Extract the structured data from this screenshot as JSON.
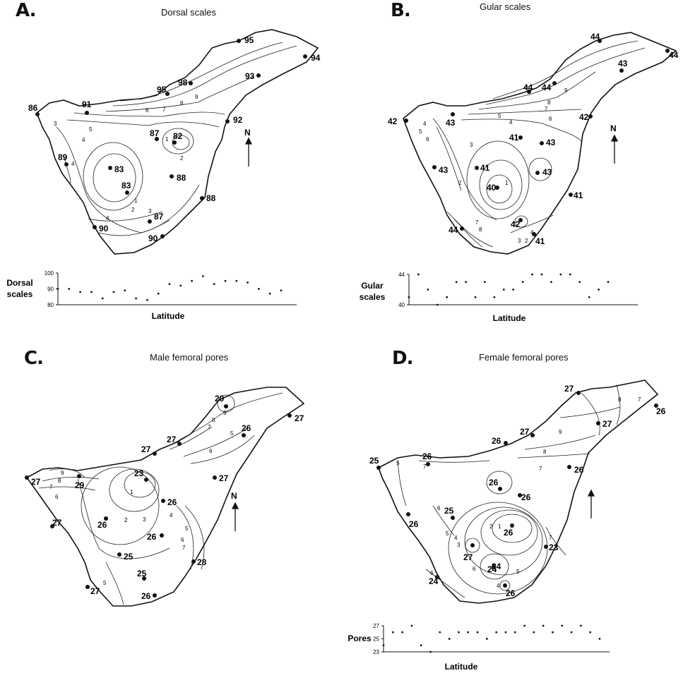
{
  "panels": {
    "a": {
      "letter": "A.",
      "title": "Dorsal scales",
      "sites": [
        "95",
        "94",
        "93",
        "98",
        "95",
        "91",
        "86",
        "92",
        "87",
        "82",
        "89",
        "83",
        "88",
        "83",
        "88",
        "87",
        "90",
        "90"
      ],
      "contours": [
        "9",
        "8",
        "7",
        "6",
        "5",
        "4",
        "3",
        "1",
        "2",
        "4",
        "1",
        "2",
        "3",
        "4"
      ],
      "north": "N",
      "plot_ylabel": [
        "Dorsal",
        "scales"
      ],
      "plot_xlabel": "Latitude",
      "ticks": [
        "100",
        "90",
        "80"
      ]
    },
    "b": {
      "letter": "B.",
      "title": "Gular  scales",
      "sites": [
        "44",
        "44",
        "43",
        "44",
        "44",
        "42",
        "42",
        "43",
        "41",
        "43",
        "43",
        "41",
        "43",
        "40",
        "41",
        "42",
        "44",
        "41"
      ],
      "contours": [
        "9",
        "8",
        "7",
        "6",
        "5",
        "4",
        "3",
        "2",
        "1",
        "7",
        "8",
        "4",
        "3",
        "2",
        "4",
        "5",
        "6"
      ],
      "north": "N",
      "plot_ylabel": [
        "Gular",
        "scales"
      ],
      "plot_xlabel": "Latitude",
      "ticks": [
        "44",
        "40"
      ]
    },
    "c": {
      "letter": "C.",
      "title": "Male femoral pores",
      "sites": [
        "29",
        "27",
        "26",
        "27",
        "27",
        "27",
        "27",
        "29",
        "23",
        "26",
        "27",
        "26",
        "26",
        "25",
        "28",
        "25",
        "27",
        "26"
      ],
      "contours": [
        "9",
        "8",
        "7",
        "6",
        "5",
        "9",
        "8",
        "7",
        "6",
        "1",
        "2",
        "3",
        "4",
        "5",
        "6",
        "7",
        "5"
      ],
      "north": "N",
      "plot_ylabel": [],
      "plot_xlabel": "",
      "ticks": []
    },
    "d": {
      "letter": "D.",
      "title": "Female femoral pores",
      "sites": [
        "27",
        "26",
        "27",
        "27",
        "26",
        "26",
        "26",
        "25",
        "26",
        "26",
        "26",
        "25",
        "26",
        "23",
        "27",
        "24",
        "24",
        "26",
        "24"
      ],
      "contours": [
        "8",
        "7",
        "9",
        "8",
        "7",
        "5",
        "7",
        "6",
        "5",
        "4",
        "3",
        "2",
        "1",
        "6",
        "5",
        "4",
        "6",
        "7"
      ],
      "north": "",
      "plot_ylabel": [
        "Pores"
      ],
      "plot_xlabel": "Latitude",
      "ticks": [
        "27",
        "25",
        "23"
      ]
    }
  },
  "chart_data": [
    {
      "type": "scatter",
      "title": "",
      "xlabel": "Latitude",
      "ylabel": "Dorsal scales",
      "ylim": [
        80,
        100
      ],
      "x": [
        1,
        2,
        3,
        4,
        5,
        6,
        7,
        8,
        9,
        10,
        11,
        12,
        13,
        14,
        15,
        16,
        17,
        18,
        19,
        20,
        21
      ],
      "y": [
        90,
        90,
        88,
        88,
        84,
        88,
        89,
        84,
        83,
        87,
        93,
        92,
        95,
        98,
        93,
        95,
        95,
        94,
        90,
        87,
        89
      ]
    },
    {
      "type": "scatter",
      "title": "",
      "xlabel": "Latitude",
      "ylabel": "Gular scales",
      "ylim": [
        40,
        44
      ],
      "x": [
        1,
        2,
        3,
        4,
        5,
        6,
        7,
        8,
        9,
        10,
        11,
        12,
        13,
        14,
        15,
        16,
        17,
        18,
        19,
        20,
        21,
        22
      ],
      "y": [
        41,
        44,
        42,
        40,
        41,
        43,
        43,
        41,
        43,
        41,
        42,
        42,
        43,
        44,
        44,
        43,
        44,
        44,
        43,
        41,
        42,
        43
      ]
    },
    {
      "type": "scatter",
      "title": "",
      "xlabel": "Latitude",
      "ylabel": "Pores",
      "ylim": [
        23,
        27
      ],
      "x": [
        1,
        2,
        3,
        4,
        5,
        6,
        7,
        8,
        9,
        10,
        11,
        12,
        13,
        14,
        15,
        16,
        17,
        18,
        19,
        20,
        21,
        22,
        23,
        24
      ],
      "y": [
        24,
        26,
        26,
        27,
        24,
        23,
        26,
        25,
        26,
        26,
        26,
        25,
        26,
        26,
        26,
        27,
        26,
        27,
        26,
        27,
        26,
        27,
        26,
        25
      ]
    }
  ]
}
